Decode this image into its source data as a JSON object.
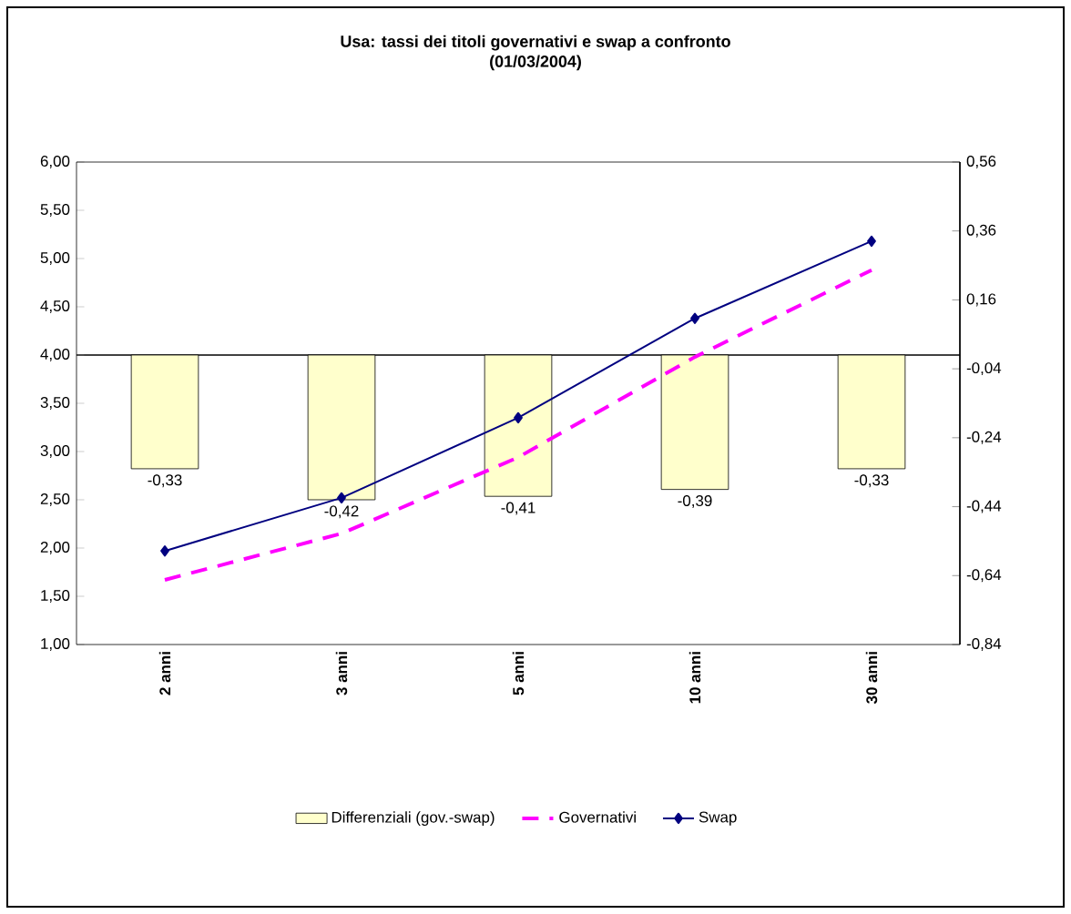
{
  "chart_data": {
    "type": "line",
    "title": "Usa: tassi dei titoli governativi e swap a confronto",
    "subtitle": "(01/03/2004)",
    "categories": [
      "2 anni",
      "3 anni",
      "5 anni",
      "10 anni",
      "30 anni"
    ],
    "series": [
      {
        "name": "Differenziali (gov.-swap)",
        "type": "bar",
        "axis": "y2",
        "color": "#ffffcc",
        "values": [
          -0.33,
          -0.42,
          -0.41,
          -0.39,
          -0.33
        ],
        "value_labels": [
          "-0,33",
          "-0,42",
          "-0,41",
          "-0,39",
          "-0,33"
        ]
      },
      {
        "name": "Governativi",
        "color": "#ff00ff",
        "line_style": "dashed",
        "marker": "none",
        "values": [
          1.67,
          2.15,
          2.94,
          3.98,
          4.88
        ]
      },
      {
        "name": "Swap",
        "color": "#000080",
        "line_style": "solid",
        "marker": "diamond",
        "values": [
          1.97,
          2.52,
          3.35,
          4.38,
          5.18
        ]
      }
    ],
    "ylim": [
      1,
      6
    ],
    "yticks": [
      {
        "value": 1,
        "label": "1,00"
      },
      {
        "value": 1.5,
        "label": "1,50"
      },
      {
        "value": 2,
        "label": "2,00"
      },
      {
        "value": 2.5,
        "label": "2,50"
      },
      {
        "value": 3,
        "label": "3,00"
      },
      {
        "value": 3.5,
        "label": "3,50"
      },
      {
        "value": 4,
        "label": "4,00"
      },
      {
        "value": 4.5,
        "label": "4,50"
      },
      {
        "value": 5,
        "label": "5,00"
      },
      {
        "value": 5.5,
        "label": "5,50"
      },
      {
        "value": 6,
        "label": "6,00"
      }
    ],
    "y2lim": [
      -0.84,
      0.56
    ],
    "y2ticks": [
      {
        "value": -0.84,
        "label": "-0,84"
      },
      {
        "value": -0.64,
        "label": "-0,64"
      },
      {
        "value": -0.44,
        "label": "-0,44"
      },
      {
        "value": -0.24,
        "label": "-0,24"
      },
      {
        "value": -0.04,
        "label": "-0,04"
      },
      {
        "value": 0.16,
        "label": "0,16"
      },
      {
        "value": 0.36,
        "label": "0,36"
      },
      {
        "value": 0.56,
        "label": "0,56"
      }
    ],
    "legend": "bottom"
  }
}
